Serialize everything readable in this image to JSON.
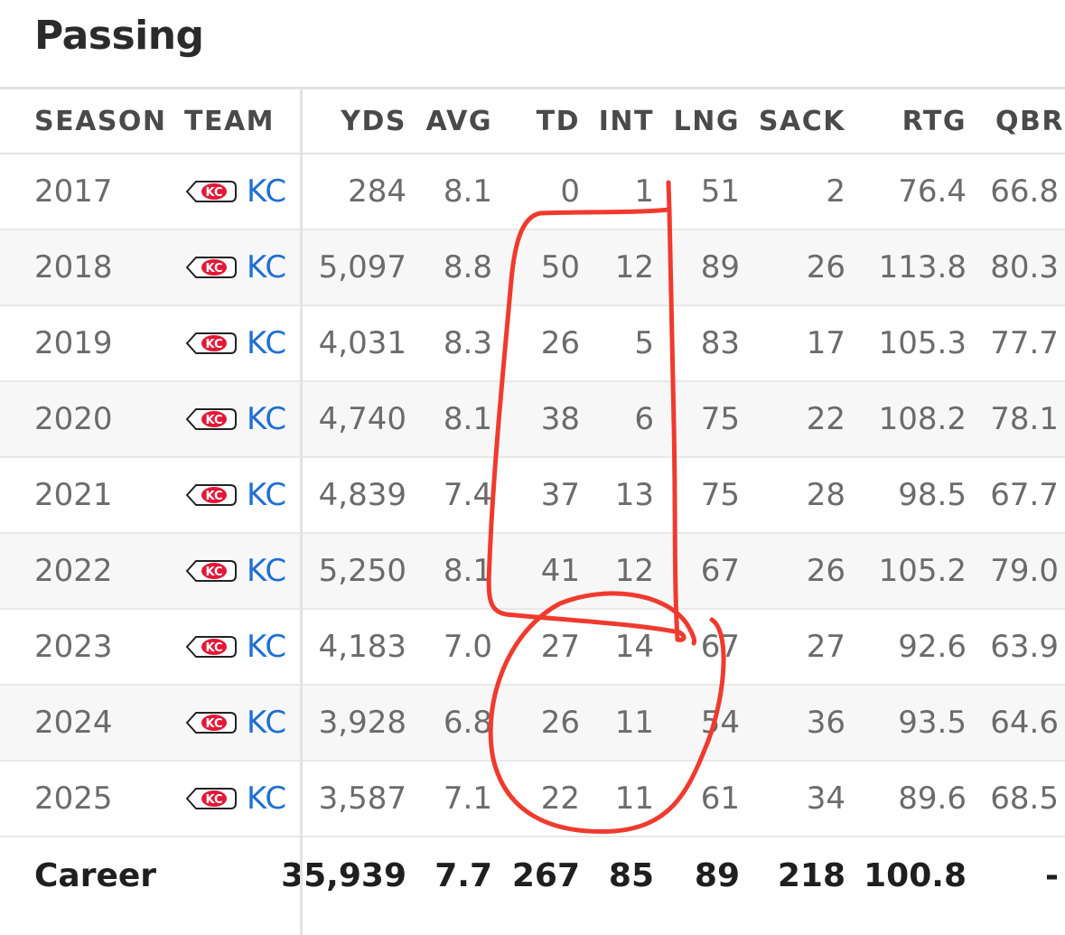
{
  "section": {
    "title": "Passing"
  },
  "colors": {
    "link": "#1f6fd1",
    "annotation": "#f03a2e",
    "row_alt": "#f7f7f8"
  },
  "table": {
    "headers": {
      "season": "SEASON",
      "team": "TEAM",
      "yds": "YDS",
      "avg": "AVG",
      "td": "TD",
      "int": "INT",
      "lng": "LNG",
      "sack": "SACK",
      "rtg": "RTG",
      "qbr": "QBR"
    },
    "rows": [
      {
        "season": "2017",
        "team": "KC",
        "yds": "284",
        "avg": "8.1",
        "td": "0",
        "int": "1",
        "lng": "51",
        "sack": "2",
        "rtg": "76.4",
        "qbr": "66.8"
      },
      {
        "season": "2018",
        "team": "KC",
        "yds": "5,097",
        "avg": "8.8",
        "td": "50",
        "int": "12",
        "lng": "89",
        "sack": "26",
        "rtg": "113.8",
        "qbr": "80.3"
      },
      {
        "season": "2019",
        "team": "KC",
        "yds": "4,031",
        "avg": "8.3",
        "td": "26",
        "int": "5",
        "lng": "83",
        "sack": "17",
        "rtg": "105.3",
        "qbr": "77.7"
      },
      {
        "season": "2020",
        "team": "KC",
        "yds": "4,740",
        "avg": "8.1",
        "td": "38",
        "int": "6",
        "lng": "75",
        "sack": "22",
        "rtg": "108.2",
        "qbr": "78.1"
      },
      {
        "season": "2021",
        "team": "KC",
        "yds": "4,839",
        "avg": "7.4",
        "td": "37",
        "int": "13",
        "lng": "75",
        "sack": "28",
        "rtg": "98.5",
        "qbr": "67.7"
      },
      {
        "season": "2022",
        "team": "KC",
        "yds": "5,250",
        "avg": "8.1",
        "td": "41",
        "int": "12",
        "lng": "67",
        "sack": "26",
        "rtg": "105.2",
        "qbr": "79.0"
      },
      {
        "season": "2023",
        "team": "KC",
        "yds": "4,183",
        "avg": "7.0",
        "td": "27",
        "int": "14",
        "lng": "67",
        "sack": "27",
        "rtg": "92.6",
        "qbr": "63.9"
      },
      {
        "season": "2024",
        "team": "KC",
        "yds": "3,928",
        "avg": "6.8",
        "td": "26",
        "int": "11",
        "lng": "54",
        "sack": "36",
        "rtg": "93.5",
        "qbr": "64.6"
      },
      {
        "season": "2025",
        "team": "KC",
        "yds": "3,587",
        "avg": "7.1",
        "td": "22",
        "int": "11",
        "lng": "61",
        "sack": "34",
        "rtg": "89.6",
        "qbr": "68.5"
      }
    ],
    "career": {
      "label": "Career",
      "yds": "35,939",
      "avg": "7.7",
      "td": "267",
      "int": "85",
      "lng": "89",
      "sack": "218",
      "rtg": "100.8",
      "qbr": "-"
    }
  }
}
